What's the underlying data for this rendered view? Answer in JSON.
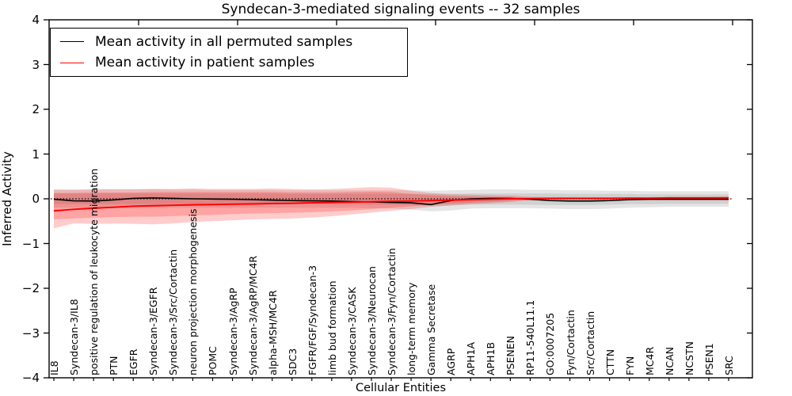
{
  "title": "Syndecan-3-mediated signaling events -- 32 samples",
  "axes": {
    "ylabel": "Inferred Activity",
    "xlabel": "Cellular Entities",
    "ytick_values": [
      4,
      3,
      2,
      1,
      0,
      -1,
      -2,
      -3,
      -4
    ],
    "ytick_labels": [
      "4",
      "3",
      "2",
      "1",
      "0",
      "−1",
      "−2",
      "−3",
      "−4"
    ]
  },
  "legend": {
    "entries": [
      {
        "label": "Mean activity in all permuted samples",
        "color": "#000000"
      },
      {
        "label": "Mean activity in patient samples",
        "color": "#ff0000"
      }
    ]
  },
  "colors": {
    "permuted_line": "#000000",
    "patient_line": "#ff0000",
    "permuted_band_fill": "rgba(0,0,0,0.10)",
    "patient_band_fill": "rgba(255,0,0,0.20)",
    "zero_line": "#000000",
    "frame": "#000000"
  },
  "chart_data": {
    "type": "line",
    "title": "Syndecan-3-mediated signaling events -- 32 samples",
    "xlabel": "Cellular Entities",
    "ylabel": "Inferred Activity",
    "ylim": [
      -4,
      4
    ],
    "grid": false,
    "legend_position": "upper left",
    "zero_reference_line": {
      "y": 0,
      "style": "dotted",
      "color": "#000000"
    },
    "categories": [
      "IL8",
      "Syndecan-3/IL8",
      "positive regulation of leukocyte migration",
      "PTN",
      "EGFR",
      "Syndecan-3/EGFR",
      "Syndecan-3/Src/Cortactin",
      "neuron projection morphogenesis",
      "POMC",
      "Syndecan-3/AgRP",
      "Syndecan-3/AgRP/MC4R",
      "alpha-MSH/MC4R",
      "SDC3",
      "FGFR/FGF/Syndecan-3",
      "limb bud formation",
      "Syndecan-3/CASK",
      "Syndecan-3/Neurocan",
      "Syndecan-3/Fyn/Cortactin",
      "long-term memory",
      "Gamma Secretase",
      "AGRP",
      "APH1A",
      "APH1B",
      "PSENEN",
      "RP11-540L11.1",
      "GO:0007205",
      "Fyn/Cortactin",
      "Src/Cortactin",
      "CTTN",
      "FYN",
      "MC4R",
      "NCAN",
      "NCSTN",
      "PSEN1",
      "SRC"
    ],
    "series": [
      {
        "name": "Mean activity in all permuted samples",
        "color": "#000000",
        "values": [
          -0.01,
          -0.045,
          -0.05,
          -0.025,
          0.01,
          0.02,
          0.01,
          0.0,
          -0.005,
          -0.01,
          -0.02,
          -0.03,
          -0.04,
          -0.045,
          -0.05,
          -0.06,
          -0.07,
          -0.08,
          -0.09,
          -0.13,
          -0.04,
          0.0,
          0.01,
          0.01,
          -0.01,
          -0.04,
          -0.05,
          -0.05,
          -0.04,
          -0.02,
          -0.01,
          -0.01,
          -0.01,
          -0.01,
          -0.01
        ]
      },
      {
        "name": "Mean activity in patient samples",
        "color": "#ff0000",
        "values": [
          -0.27,
          -0.235,
          -0.21,
          -0.19,
          -0.165,
          -0.155,
          -0.145,
          -0.135,
          -0.13,
          -0.12,
          -0.115,
          -0.105,
          -0.1,
          -0.09,
          -0.08,
          -0.075,
          -0.065,
          -0.055,
          -0.05,
          -0.04,
          -0.03,
          -0.02,
          -0.01,
          0.0,
          0.005,
          0.01,
          0.01,
          0.01,
          0.01,
          0.015,
          0.015,
          0.02,
          0.02,
          0.02,
          0.02
        ]
      }
    ],
    "bands": [
      {
        "name": "permuted-band-outer",
        "fill": "rgba(0,0,0,0.10)",
        "upper": [
          0.22,
          0.21,
          0.21,
          0.22,
          0.22,
          0.22,
          0.21,
          0.21,
          0.2,
          0.2,
          0.2,
          0.2,
          0.19,
          0.19,
          0.19,
          0.19,
          0.19,
          0.19,
          0.19,
          0.18,
          0.19,
          0.2,
          0.21,
          0.21,
          0.2,
          0.2,
          0.19,
          0.19,
          0.18,
          0.18,
          0.17,
          0.17,
          0.17,
          0.17,
          0.17
        ],
        "lower": [
          -0.2,
          -0.2,
          -0.21,
          -0.21,
          -0.2,
          -0.2,
          -0.2,
          -0.2,
          -0.2,
          -0.2,
          -0.2,
          -0.2,
          -0.2,
          -0.2,
          -0.2,
          -0.2,
          -0.21,
          -0.22,
          -0.24,
          -0.28,
          -0.26,
          -0.22,
          -0.21,
          -0.21,
          -0.21,
          -0.22,
          -0.23,
          -0.23,
          -0.22,
          -0.2,
          -0.19,
          -0.18,
          -0.18,
          -0.18,
          -0.18
        ]
      },
      {
        "name": "permuted-band-inner",
        "fill": "rgba(0,0,0,0.09)",
        "upper": [
          0.12,
          0.12,
          0.12,
          0.12,
          0.12,
          0.12,
          0.12,
          0.12,
          0.12,
          0.12,
          0.12,
          0.12,
          0.11,
          0.11,
          0.11,
          0.11,
          0.11,
          0.11,
          0.11,
          0.11,
          0.11,
          0.12,
          0.12,
          0.12,
          0.12,
          0.12,
          0.11,
          0.11,
          0.11,
          0.11,
          0.1,
          0.1,
          0.1,
          0.1,
          0.1
        ],
        "lower": [
          -0.12,
          -0.12,
          -0.12,
          -0.12,
          -0.12,
          -0.12,
          -0.12,
          -0.12,
          -0.12,
          -0.12,
          -0.12,
          -0.12,
          -0.12,
          -0.12,
          -0.12,
          -0.12,
          -0.13,
          -0.13,
          -0.14,
          -0.17,
          -0.15,
          -0.13,
          -0.13,
          -0.13,
          -0.13,
          -0.14,
          -0.14,
          -0.14,
          -0.13,
          -0.12,
          -0.12,
          -0.11,
          -0.11,
          -0.11,
          -0.11
        ]
      },
      {
        "name": "patient-band-outer",
        "fill": "rgba(255,0,0,0.20)",
        "upper": [
          0.2,
          0.2,
          0.21,
          0.21,
          0.21,
          0.22,
          0.22,
          0.23,
          0.22,
          0.22,
          0.22,
          0.23,
          0.22,
          0.21,
          0.22,
          0.24,
          0.26,
          0.25,
          0.18,
          0.13,
          0.1,
          0.09,
          0.08,
          0.07,
          0.045,
          0.035,
          0.035,
          0.035,
          0.035,
          0.035,
          0.035,
          0.04,
          0.04,
          0.04,
          0.05
        ],
        "lower": [
          -0.66,
          -0.55,
          -0.56,
          -0.55,
          -0.56,
          -0.57,
          -0.55,
          -0.52,
          -0.5,
          -0.48,
          -0.46,
          -0.45,
          -0.44,
          -0.42,
          -0.39,
          -0.35,
          -0.31,
          -0.27,
          -0.23,
          -0.18,
          -0.145,
          -0.12,
          -0.1,
          -0.07,
          -0.03,
          -0.025,
          -0.025,
          -0.025,
          -0.025,
          -0.025,
          -0.025,
          -0.025,
          -0.025,
          -0.025,
          -0.03
        ]
      },
      {
        "name": "patient-band-inner",
        "fill": "rgba(255,0,0,0.20)",
        "upper": [
          0.13,
          0.13,
          0.14,
          0.14,
          0.14,
          0.15,
          0.15,
          0.15,
          0.15,
          0.15,
          0.15,
          0.15,
          0.14,
          0.14,
          0.14,
          0.15,
          0.16,
          0.15,
          0.11,
          0.08,
          0.06,
          0.05,
          0.04,
          0.03,
          0.025,
          0.02,
          0.02,
          0.02,
          0.02,
          0.02,
          0.02,
          0.025,
          0.025,
          0.025,
          0.03
        ],
        "lower": [
          -0.46,
          -0.44,
          -0.42,
          -0.41,
          -0.4,
          -0.4,
          -0.39,
          -0.37,
          -0.36,
          -0.34,
          -0.33,
          -0.32,
          -0.31,
          -0.3,
          -0.28,
          -0.26,
          -0.23,
          -0.2,
          -0.17,
          -0.13,
          -0.11,
          -0.09,
          -0.07,
          -0.05,
          -0.02,
          -0.015,
          -0.015,
          -0.015,
          -0.015,
          -0.015,
          -0.015,
          -0.015,
          -0.015,
          -0.015,
          -0.02
        ]
      }
    ]
  }
}
